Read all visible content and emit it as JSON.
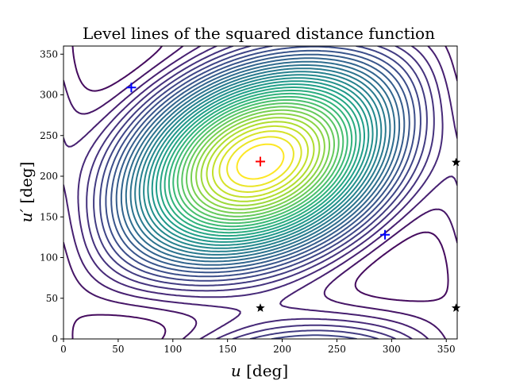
{
  "chart_data": {
    "type": "contour",
    "title": "Level lines of the squared distance function",
    "xlabel_var": "u",
    "xlabel_unit": " [deg]",
    "ylabel_var": "u′",
    "ylabel_unit": " [deg]",
    "xlim": [
      0,
      360
    ],
    "ylim": [
      0,
      360
    ],
    "xticks": [
      0,
      50,
      100,
      150,
      200,
      250,
      300,
      350
    ],
    "yticks": [
      0,
      50,
      100,
      150,
      200,
      250,
      300,
      350
    ],
    "colormap": "viridis",
    "grid": false,
    "markers": [
      {
        "name": "maximum",
        "symbol": "plus",
        "color": "#ff0000",
        "x": 180,
        "y": 218
      },
      {
        "name": "saddle-1",
        "symbol": "plus",
        "color": "#0000ff",
        "x": 62,
        "y": 309
      },
      {
        "name": "saddle-2",
        "symbol": "plus",
        "color": "#0000ff",
        "x": 294,
        "y": 128
      },
      {
        "name": "minimum-1",
        "symbol": "star",
        "color": "#000000",
        "x": 180,
        "y": 38
      },
      {
        "name": "minimum-2",
        "symbol": "star",
        "color": "#000000",
        "x": 359,
        "y": 38
      },
      {
        "name": "minimum-3",
        "symbol": "star",
        "color": "#000000",
        "x": 359,
        "y": 217
      }
    ]
  }
}
